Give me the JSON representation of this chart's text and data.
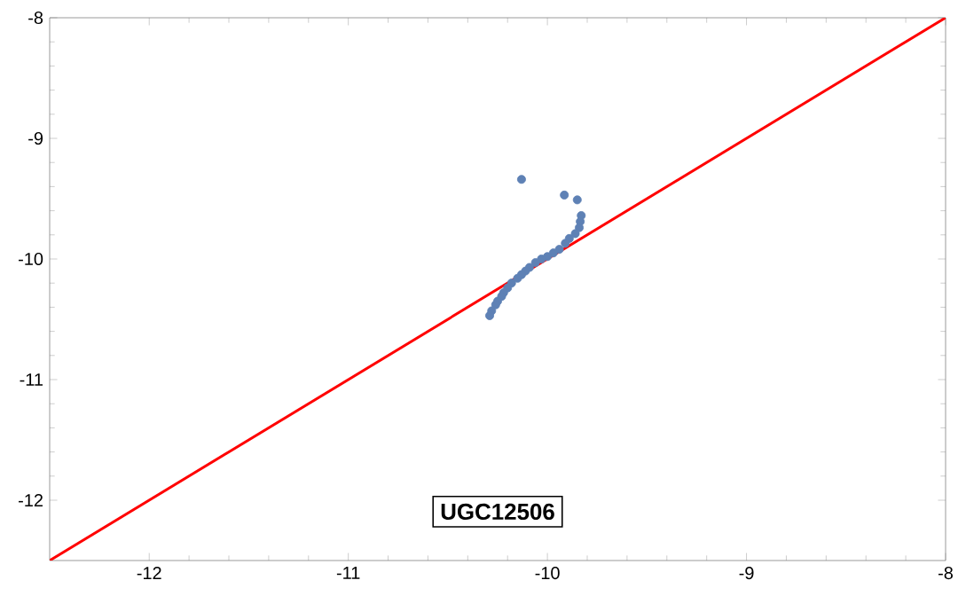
{
  "chart_data": {
    "type": "scatter",
    "xlim": [
      -12.5,
      -8
    ],
    "ylim": [
      -12.5,
      -8
    ],
    "xticks": [
      -12,
      -11,
      -10,
      -9,
      -8
    ],
    "yticks": [
      -12,
      -11,
      -10,
      -9,
      -8
    ],
    "grid": false,
    "annotations": [
      "UGC12506"
    ],
    "series": [
      {
        "color": "#5e81b5",
        "x": [
          -10.13,
          -9.915,
          -9.85,
          -9.83,
          -9.835,
          -9.84,
          -9.86,
          -9.89,
          -9.91,
          -9.94,
          -9.97,
          -10.0,
          -10.03,
          -10.06,
          -10.09,
          -10.11,
          -10.13,
          -10.15,
          -10.18,
          -10.2,
          -10.22,
          -10.23,
          -10.25,
          -10.26,
          -10.28,
          -10.29
        ],
        "values": [
          -9.34,
          -9.47,
          -9.51,
          -9.64,
          -9.69,
          -9.74,
          -9.79,
          -9.83,
          -9.87,
          -9.92,
          -9.95,
          -9.98,
          -10.0,
          -10.03,
          -10.07,
          -10.1,
          -10.13,
          -10.16,
          -10.2,
          -10.24,
          -10.28,
          -10.31,
          -10.35,
          -10.38,
          -10.43,
          -10.47
        ]
      },
      {
        "type": "line",
        "color": "#ff0000",
        "x": [
          -12.5,
          -8
        ],
        "values": [
          -12.5,
          -8
        ]
      }
    ]
  }
}
